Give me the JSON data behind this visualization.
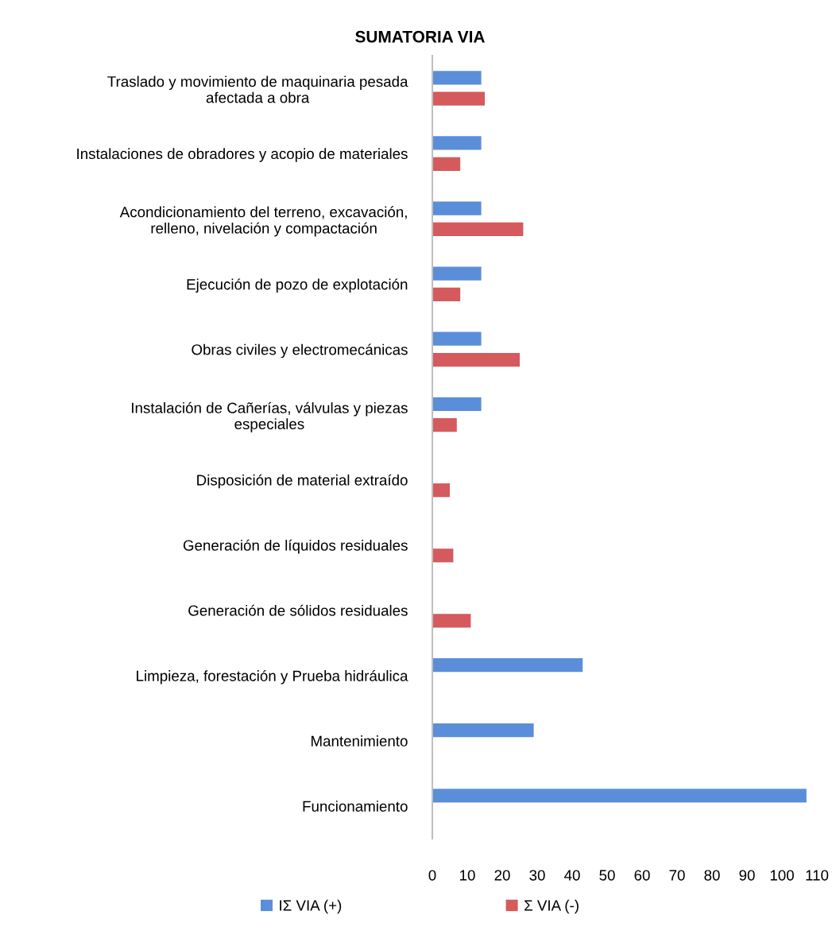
{
  "chart_data": {
    "type": "bar",
    "orientation": "horizontal",
    "title": "SUMATORIA VIA",
    "categories": [
      "Traslado y movimiento de maquinaria pesada\nafectada a obra",
      "Instalaciones de obradores y acopio de materiales",
      "Acondicionamiento del terreno, excavación,\nrelleno, nivelación y compactación",
      "Ejecución de pozo de explotación",
      "Obras civiles y electromecánicas",
      "Instalación de Cañerías, válvulas y piezas\nespeciales",
      "Disposición de material extraído",
      "Generación de líquidos residuales",
      "Generación de sólidos residuales",
      "Limpieza, forestación y Prueba hidráulica",
      "Mantenimiento",
      "Funcionamiento"
    ],
    "series": [
      {
        "name": "IΣ VIA (+)",
        "color": "#5b8ed8",
        "values": [
          14,
          14,
          14,
          14,
          14,
          14,
          null,
          null,
          null,
          43,
          29,
          107
        ]
      },
      {
        "name": "Σ VIA (-)",
        "color": "#d55a5d",
        "values": [
          15,
          8,
          26,
          8,
          25,
          7,
          5,
          6,
          11,
          null,
          null,
          null
        ]
      }
    ],
    "xlim": [
      0,
      110
    ],
    "xticks": [
      0,
      10,
      20,
      30,
      40,
      50,
      60,
      70,
      80,
      90,
      100,
      110
    ],
    "grid": false,
    "legend": "bottom"
  }
}
